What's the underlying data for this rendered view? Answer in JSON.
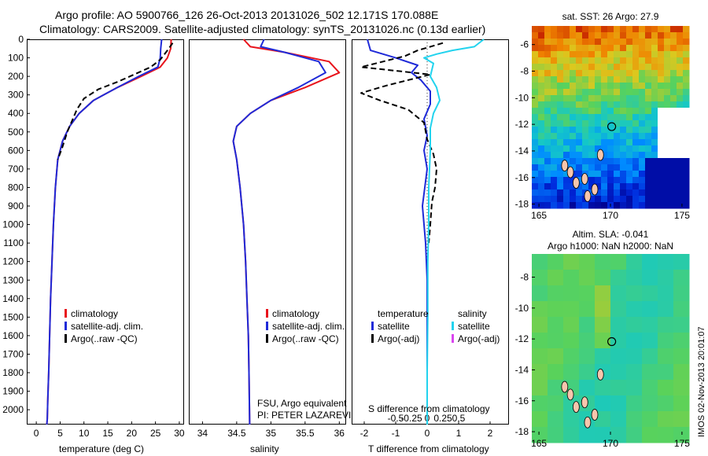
{
  "header": {
    "line1": "Argo profile: AO 5900766_126 26-Oct-2013 20131026_502 12.171S 170.088E",
    "line2": "Climatology: CARS2009. Satellite-adjusted climatology: synTS_20131026.nc (0.13d earlier)"
  },
  "colors": {
    "climatology": "#e8141c",
    "satellite": "#1f2ad8",
    "argo": "#000000",
    "sat_salinity": "#22d3ee",
    "argo_salinity": "#d946ef"
  },
  "chart_data": [
    {
      "type": "line",
      "name": "temperature",
      "xlabel": "temperature (deg C)",
      "ylabel": "",
      "xlim": [
        -2,
        31
      ],
      "ylim": [
        0,
        2080
      ],
      "xticks": [
        0,
        5,
        10,
        15,
        20,
        25,
        30
      ],
      "yticks": [
        0,
        100,
        200,
        300,
        400,
        500,
        600,
        700,
        800,
        900,
        1000,
        1100,
        1200,
        1300,
        1400,
        1500,
        1600,
        1700,
        1800,
        1900,
        2000
      ],
      "legend": [
        "climatology",
        "satellite-adj. clim.",
        "Argo(..raw -QC)"
      ],
      "series": [
        {
          "name": "climatology",
          "x": [
            28.3,
            28.2,
            27.5,
            26.0,
            22.0,
            17.0,
            12.0,
            9.0,
            7.0,
            5.5,
            4.5,
            4.0,
            3.6,
            3.3,
            3.0,
            2.8,
            2.6,
            2.4,
            2.3,
            2.2
          ],
          "y": [
            0,
            50,
            100,
            150,
            200,
            260,
            330,
            400,
            470,
            550,
            650,
            800,
            1000,
            1200,
            1400,
            1600,
            1800,
            1950,
            2050,
            2080
          ]
        },
        {
          "name": "satellite-adj. clim.",
          "x": [
            26.3,
            26.1,
            26.0,
            25.5,
            21.5,
            17.0,
            12.0,
            9.0,
            7.0,
            5.5,
            4.5,
            4.0,
            3.6,
            3.3,
            3.0,
            2.8,
            2.6,
            2.4,
            2.3,
            2.2
          ],
          "y": [
            0,
            50,
            100,
            150,
            200,
            260,
            330,
            400,
            470,
            550,
            650,
            800,
            1000,
            1200,
            1400,
            1600,
            1800,
            1950,
            2050,
            2080
          ]
        },
        {
          "name": "Argo(..raw -QC)",
          "x": [
            28.6,
            27.5,
            26.0,
            24.0,
            20.5,
            17.0,
            13.0,
            10.0,
            8.5,
            7.5,
            6.5,
            5.5,
            4.5
          ],
          "y": [
            20,
            60,
            110,
            150,
            190,
            230,
            270,
            320,
            380,
            440,
            500,
            580,
            650
          ]
        }
      ]
    },
    {
      "type": "line",
      "name": "salinity",
      "xlabel": "salinity",
      "ylabel": "",
      "xlim": [
        33.8,
        36.1
      ],
      "ylim": [
        0,
        2080
      ],
      "xticks": [
        34,
        34.5,
        35,
        35.5,
        36
      ],
      "legend": [
        "climatology",
        "satellite-adj. clim.",
        "Argo(..raw -QC)"
      ],
      "series": [
        {
          "name": "climatology",
          "x": [
            34.6,
            34.7,
            35.2,
            35.85,
            36.0,
            35.5,
            35.0,
            34.7,
            34.5,
            34.45,
            34.5,
            34.55,
            34.6,
            34.63,
            34.65,
            34.67,
            34.68,
            34.69
          ],
          "y": [
            0,
            40,
            70,
            120,
            180,
            260,
            330,
            400,
            470,
            550,
            650,
            800,
            1000,
            1200,
            1400,
            1600,
            1800,
            2080
          ]
        },
        {
          "name": "satellite-adj. clim.",
          "x": [
            34.9,
            34.85,
            35.2,
            35.7,
            35.8,
            35.4,
            35.0,
            34.7,
            34.5,
            34.45,
            34.5,
            34.55,
            34.6,
            34.63,
            34.65,
            34.67,
            34.68,
            34.69
          ],
          "y": [
            0,
            40,
            70,
            120,
            180,
            260,
            330,
            400,
            470,
            550,
            650,
            800,
            1000,
            1200,
            1400,
            1600,
            1800,
            2080
          ]
        }
      ]
    },
    {
      "type": "line",
      "name": "difference",
      "xlabel": "T difference from climatology",
      "xlabel2": "S difference from climatology",
      "xlim": [
        -2.4,
        2.6
      ],
      "xticks": [
        -2,
        -1,
        0,
        1,
        2
      ],
      "xticks2": [
        -0.5,
        -0.25,
        0,
        0.25,
        0.5
      ],
      "xtick2_labels": [
        "-0.5",
        "-0.25",
        "0",
        "0.25",
        "0.5"
      ],
      "ylim": [
        0,
        2080
      ],
      "legend_temperature": [
        "temperature",
        "satellite",
        "Argo(-adj)"
      ],
      "legend_salinity": [
        "salinity",
        "satellite",
        "Argo(-adj)"
      ],
      "series": [
        {
          "name": "T satellite",
          "x": [
            -1.9,
            -1.8,
            -1.0,
            -0.3,
            -0.5,
            -0.2,
            0.1,
            0.1,
            -0.1,
            0.0,
            -0.1,
            0.0,
            -0.15,
            -0.05,
            0.0,
            0.0,
            0.0,
            0.0
          ],
          "y": [
            0,
            60,
            100,
            140,
            180,
            220,
            280,
            350,
            430,
            520,
            600,
            700,
            900,
            1100,
            1300,
            1500,
            1800,
            2080
          ]
        },
        {
          "name": "T Argo(-adj)",
          "x": [
            0.5,
            -0.3,
            -0.7,
            -1.4,
            -2.1,
            -1.0,
            0.1,
            -0.6,
            -1.3,
            -2.1,
            -1.5,
            -0.6,
            -0.1,
            0.0,
            0.2,
            0.3,
            0.25,
            0.15,
            0.1,
            0.05
          ],
          "y": [
            20,
            60,
            90,
            120,
            150,
            170,
            190,
            220,
            250,
            290,
            330,
            380,
            450,
            540,
            620,
            700,
            800,
            880,
            1000,
            1100
          ]
        },
        {
          "name": "S satellite",
          "x": [
            1.8,
            1.5,
            0.8,
            0.3,
            -0.1,
            0.2,
            0.1,
            0.3,
            0.4,
            0.2,
            0.1,
            0.1,
            0.05,
            0.05,
            0.02,
            0.02,
            0.0,
            0.0
          ],
          "y": [
            0,
            40,
            60,
            80,
            100,
            130,
            200,
            260,
            330,
            400,
            480,
            600,
            800,
            1000,
            1200,
            1500,
            1800,
            2080
          ]
        }
      ]
    },
    {
      "type": "heatmap",
      "name": "sst-map",
      "title": "sat. SST: 26 Argo: 27.9",
      "xticks": [
        165,
        170,
        175
      ],
      "yticks": [
        -6,
        -8,
        -10,
        -12,
        -14,
        -16,
        -18
      ],
      "marker": {
        "lon": 170.088,
        "lat": -12.171
      }
    },
    {
      "type": "heatmap",
      "name": "sla-map",
      "title_line1": "Altim. SLA: -0.041",
      "title_line2": "Argo h1000: NaN h2000: NaN",
      "xticks": [
        165,
        170,
        175
      ],
      "yticks": [
        -8,
        -10,
        -12,
        -14,
        -16,
        -18
      ],
      "marker": {
        "lon": 170.088,
        "lat": -12.171
      }
    }
  ],
  "legends": {
    "temp": [
      "climatology",
      "satellite-adj. clim.",
      "Argo(..raw -QC)"
    ],
    "sal": [
      "climatology",
      "satellite-adj. clim.",
      "Argo(..raw -QC)"
    ],
    "diff_t": [
      "temperature",
      "satellite",
      "Argo(-adj)"
    ],
    "diff_s": [
      "salinity",
      "satellite",
      "Argo(-adj)"
    ]
  },
  "credits": {
    "line1": "FSU, Argo equivalent",
    "line2": "PI: PETER LAZAREVICH"
  },
  "footer": {
    "vertical_label": "IMOS 02-Nov-2013 20:01:07"
  }
}
